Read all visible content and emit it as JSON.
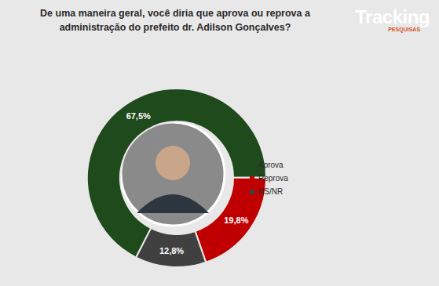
{
  "chart_data": {
    "type": "pie",
    "title": "De uma maneira geral, você diria que aprova ou reprova a administração do prefeito dr. Adilson Gonçalves?",
    "annotations": [
      "Tracking",
      "PESQUISAS"
    ],
    "categories": [
      "Aprova",
      "Reprova",
      "NS/NR"
    ],
    "values": [
      67.5,
      19.8,
      12.8
    ],
    "value_labels": [
      "67,5%",
      "19,8%",
      "12,8%"
    ],
    "colors": [
      "#1f4a1c",
      "#c00000",
      "#404040"
    ],
    "data_labels": true,
    "legend": "right"
  }
}
